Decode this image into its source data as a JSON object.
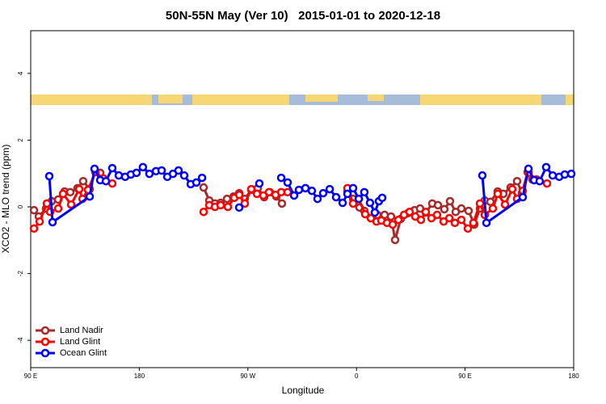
{
  "chart_data": {
    "type": "line",
    "title": "50N-55N May (Ver 10)   2015-01-01 to 2020-12-18",
    "xlabel": "Longitude",
    "ylabel": "XCO2 - MLO trend (ppm)",
    "xlim": [
      90,
      540
    ],
    "ylim": [
      -4.82,
      5.28
    ],
    "xticks": [
      {
        "value": 90,
        "label": "90 E"
      },
      180,
      {
        "value": 270,
        "label": "90 W"
      },
      {
        "value": 360,
        "label": "0"
      },
      {
        "value": 450,
        "label": "90 E"
      },
      {
        "value": 540,
        "label": "180"
      }
    ],
    "yticks": [
      -4,
      -2,
      0,
      2,
      4
    ],
    "legend": "bottom-left",
    "series": [
      {
        "name": "Land Nadir",
        "color": "#a52a2a",
        "x": [
          92.7,
          96.7,
          102.7,
          107.4,
          112.8,
          118.1,
          122.8,
          128.8,
          133.5,
          138.9,
          143.6,
          147.6,
          null,
          233.3,
          238.0,
          242.7,
          247.4,
          252.7,
          258.1,
          262.8,
          267.4,
          272.8,
          278.2,
          283.5,
          288.2,
          293.6,
          298.2,
          null,
          352.5,
          357.2,
          362.5,
          366.5,
          371.9,
          377.3,
          383.3,
          388.6,
          392.0,
          396.7,
          402.7,
          408.1,
          412.7,
          417.4,
          422.8,
          427.5,
          432.8,
          437.5,
          442.2,
          446.9,
          452.9,
          457.6,
          462.3,
          466.3,
          471.0,
          477.0,
          481.7,
          487.7,
          493.1,
          497.1,
          501.8,
          505.8
        ],
        "values": [
          -0.1,
          -0.29,
          -0.05,
          0.17,
          0.22,
          0.46,
          0.44,
          0.56,
          0.77,
          0.53,
          1.07,
          1.02,
          null,
          0.58,
          0.19,
          0.1,
          0.12,
          0.24,
          0.31,
          0.41,
          0.24,
          0.51,
          0.56,
          0.29,
          0.44,
          0.31,
          0.1,
          null,
          0.48,
          0.24,
          -0.02,
          -0.12,
          -0.34,
          -0.24,
          -0.24,
          -0.29,
          -0.99,
          -0.36,
          -0.19,
          -0.1,
          -0.05,
          -0.17,
          0.1,
          0.05,
          -0.07,
          0.17,
          -0.15,
          -0.05,
          -0.12,
          -0.53,
          -0.05,
          0.19,
          0.15,
          0.46,
          0.39,
          0.58,
          0.77,
          0.41,
          1.04,
          0.82
        ]
      },
      {
        "name": "Land Glint",
        "color": "#ff0000",
        "x": [
          92.7,
          97.4,
          103.4,
          106.1,
          112.8,
          116.8,
          123.5,
          130.2,
          132.9,
          137.5,
          143.6,
          150.3,
          157.6,
          null,
          233.3,
          238.0,
          242.7,
          247.4,
          253.4,
          258.7,
          262.8,
          267.4,
          272.8,
          277.5,
          282.8,
          287.5,
          292.9,
          297.6,
          302.9,
          null,
          352.5,
          357.2,
          361.9,
          367.2,
          371.9,
          376.6,
          380.6,
          385.3,
          390.0,
          394.7,
          399.4,
          404.0,
          408.7,
          413.4,
          417.4,
          422.1,
          426.8,
          432.2,
          436.9,
          441.5,
          446.9,
          452.3,
          456.9,
          462.3,
          466.3,
          473.0,
          477.0,
          483.1,
          489.1,
          493.1,
          497.8,
          502.5,
          509.2,
          517.9
        ],
        "values": [
          -0.65,
          -0.44,
          0.1,
          -0.15,
          -0.05,
          0.39,
          0.07,
          0.53,
          0.24,
          0.51,
          1.04,
          0.85,
          0.7,
          null,
          -0.15,
          0.05,
          0.0,
          0.05,
          0.0,
          0.27,
          0.36,
          0.1,
          0.53,
          0.39,
          0.34,
          0.44,
          0.36,
          0.44,
          0.44,
          null,
          0.56,
          0.1,
          0.24,
          -0.22,
          -0.34,
          -0.44,
          -0.41,
          -0.48,
          -0.53,
          -0.39,
          -0.24,
          -0.15,
          -0.29,
          -0.39,
          -0.15,
          -0.34,
          -0.24,
          -0.44,
          -0.34,
          -0.48,
          -0.39,
          -0.65,
          -0.48,
          0.1,
          -0.24,
          -0.05,
          0.39,
          0.07,
          0.53,
          0.24,
          0.48,
          1.02,
          0.82,
          0.7
        ]
      },
      {
        "name": "Ocean Glint",
        "color": "#0000ff",
        "x": [
          105.4,
          108.1,
          138.9,
          142.9,
          147.6,
          152.3,
          157.6,
          163.0,
          168.3,
          173.0,
          177.7,
          183.0,
          188.4,
          193.8,
          198.5,
          203.2,
          207.9,
          212.5,
          217.2,
          222.6,
          227.3,
          232.0,
          null,
          262.8,
          null,
          279.5,
          null,
          297.6,
          302.9,
          308.3,
          312.3,
          317.7,
          323.0,
          327.7,
          332.4,
          337.8,
          343.1,
          348.5,
          352.5,
          357.2,
          361.9,
          366.5,
          371.2,
          375.2,
          378.6,
          381.3,
          null,
          464.3,
          467.7,
          497.8,
          502.5,
          507.2,
          511.8,
          517.2,
          522.6,
          528.0,
          532.6,
          538.0
        ],
        "values": [
          0.92,
          -0.46,
          0.31,
          1.14,
          0.8,
          0.77,
          1.16,
          0.94,
          0.9,
          0.97,
          1.02,
          1.19,
          0.99,
          1.07,
          1.09,
          0.9,
          0.99,
          1.09,
          0.94,
          0.68,
          0.73,
          0.87,
          null,
          -0.02,
          null,
          0.7,
          null,
          0.87,
          0.73,
          0.34,
          0.51,
          0.56,
          0.48,
          0.24,
          0.41,
          0.53,
          0.29,
          0.12,
          0.39,
          0.56,
          0.24,
          0.44,
          0.12,
          -0.17,
          0.17,
          0.27,
          null,
          0.94,
          -0.48,
          0.29,
          1.14,
          0.8,
          0.77,
          1.19,
          0.94,
          0.9,
          0.97,
          0.99
        ]
      }
    ]
  }
}
